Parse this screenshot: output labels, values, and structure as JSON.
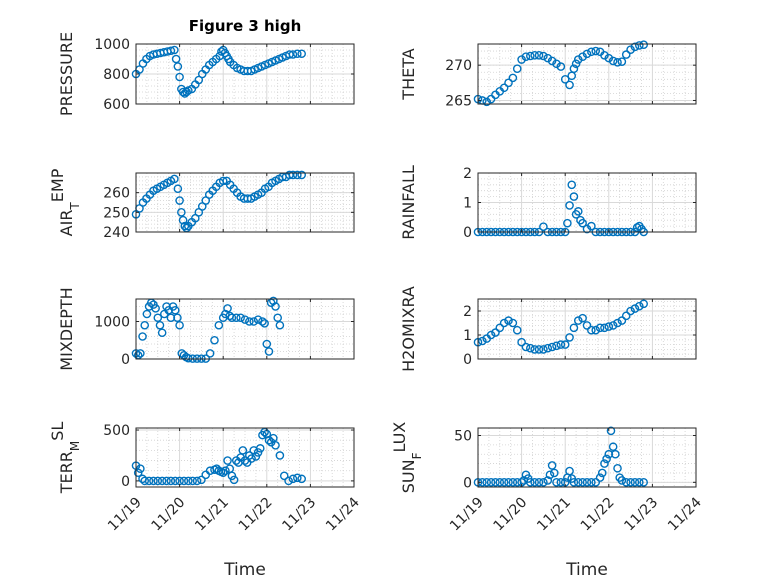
{
  "figure": {
    "title": "Figure 3 high",
    "xlabel": "Time",
    "x_tick_labels": [
      "11/19",
      "11/20",
      "11/21",
      "11/22",
      "11/23",
      "11/24"
    ],
    "marker_color": "#0072BD",
    "grid": true
  },
  "chart_data": [
    {
      "type": "scatter",
      "name": "pressure",
      "ylabel": "PRESSURE",
      "ylabel_sub": "",
      "xlim": [
        "11/19",
        "11/24"
      ],
      "ylim": [
        600,
        1000
      ],
      "yticks": [
        600,
        800,
        1000
      ],
      "x_days": [
        0.0,
        0.08,
        0.16,
        0.24,
        0.32,
        0.4,
        0.48,
        0.56,
        0.64,
        0.72,
        0.8,
        0.88,
        0.92,
        0.96,
        1.0,
        1.04,
        1.08,
        1.12,
        1.16,
        1.2,
        1.28,
        1.36,
        1.44,
        1.52,
        1.6,
        1.68,
        1.76,
        1.84,
        1.92,
        1.96,
        2.0,
        2.04,
        2.08,
        2.12,
        2.16,
        2.24,
        2.32,
        2.4,
        2.48,
        2.56,
        2.64,
        2.72,
        2.8,
        2.88,
        2.96,
        3.04,
        3.12,
        3.2,
        3.28,
        3.36,
        3.44,
        3.52,
        3.6,
        3.7,
        3.8
      ],
      "values": [
        800,
        830,
        870,
        900,
        920,
        930,
        935,
        940,
        945,
        950,
        955,
        960,
        900,
        850,
        780,
        700,
        680,
        670,
        680,
        690,
        700,
        730,
        760,
        800,
        830,
        860,
        880,
        900,
        920,
        950,
        960,
        940,
        920,
        900,
        880,
        860,
        840,
        830,
        820,
        820,
        820,
        830,
        840,
        850,
        860,
        870,
        880,
        890,
        900,
        910,
        920,
        930,
        930,
        935,
        935
      ]
    },
    {
      "type": "scatter",
      "name": "theta",
      "ylabel": "THETA",
      "ylabel_sub": "",
      "xlim": [
        "11/19",
        "11/24"
      ],
      "ylim": [
        264.5,
        273
      ],
      "yticks": [
        265,
        270
      ],
      "x_days": [
        0.0,
        0.1,
        0.2,
        0.3,
        0.4,
        0.5,
        0.6,
        0.7,
        0.8,
        0.9,
        1.0,
        1.1,
        1.2,
        1.3,
        1.4,
        1.5,
        1.6,
        1.7,
        1.8,
        1.9,
        2.0,
        2.1,
        2.15,
        2.2,
        2.25,
        2.3,
        2.4,
        2.5,
        2.6,
        2.7,
        2.8,
        2.9,
        3.0,
        3.1,
        3.2,
        3.3,
        3.4,
        3.5,
        3.6,
        3.7,
        3.8
      ],
      "values": [
        265.2,
        265.0,
        264.8,
        265.2,
        265.8,
        266.3,
        266.8,
        267.5,
        268.2,
        269.5,
        270.8,
        271.2,
        271.3,
        271.4,
        271.4,
        271.3,
        271.0,
        270.6,
        270.2,
        269.8,
        268.0,
        267.2,
        268.5,
        269.5,
        270.2,
        270.8,
        271.2,
        271.6,
        271.9,
        272.0,
        271.9,
        271.4,
        271.0,
        270.6,
        270.4,
        270.5,
        271.5,
        272.2,
        272.6,
        272.8,
        272.9
      ]
    },
    {
      "type": "scatter",
      "name": "air-temp",
      "ylabel": "AIR",
      "ylabel_sub": "T",
      "ylabel_tail": "EMP",
      "xlim": [
        "11/19",
        "11/24"
      ],
      "ylim": [
        240,
        270
      ],
      "yticks": [
        240,
        250,
        260
      ],
      "x_days": [
        0.0,
        0.08,
        0.16,
        0.24,
        0.32,
        0.4,
        0.48,
        0.56,
        0.64,
        0.72,
        0.8,
        0.88,
        0.96,
        1.0,
        1.04,
        1.08,
        1.12,
        1.16,
        1.2,
        1.28,
        1.36,
        1.44,
        1.52,
        1.6,
        1.68,
        1.76,
        1.84,
        1.92,
        2.0,
        2.08,
        2.16,
        2.24,
        2.32,
        2.4,
        2.48,
        2.56,
        2.64,
        2.72,
        2.8,
        2.88,
        2.96,
        3.04,
        3.12,
        3.2,
        3.28,
        3.36,
        3.44,
        3.52,
        3.6,
        3.7,
        3.8
      ],
      "values": [
        249,
        252,
        255,
        257,
        259,
        261,
        262,
        263,
        264,
        265,
        266,
        267,
        262,
        256,
        250,
        246,
        243,
        242,
        243,
        245,
        247,
        250,
        253,
        256,
        259,
        261,
        263,
        265,
        266,
        266,
        264,
        262,
        260,
        258,
        257,
        257,
        257,
        258,
        259,
        260,
        262,
        263,
        265,
        266,
        267,
        268,
        268,
        269,
        269,
        269,
        269
      ]
    },
    {
      "type": "scatter",
      "name": "rainfall",
      "ylabel": "RAINFALL",
      "ylabel_sub": "",
      "xlim": [
        "11/19",
        "11/24"
      ],
      "ylim": [
        0,
        2
      ],
      "yticks": [
        0,
        1,
        2
      ],
      "x_days": [
        0.0,
        0.1,
        0.2,
        0.3,
        0.4,
        0.5,
        0.6,
        0.7,
        0.8,
        0.9,
        1.0,
        1.1,
        1.2,
        1.3,
        1.4,
        1.5,
        1.6,
        1.7,
        1.8,
        1.9,
        2.0,
        2.05,
        2.1,
        2.15,
        2.2,
        2.25,
        2.3,
        2.35,
        2.4,
        2.5,
        2.6,
        2.7,
        2.8,
        2.9,
        3.0,
        3.1,
        3.2,
        3.3,
        3.4,
        3.5,
        3.6,
        3.65,
        3.7,
        3.75,
        3.8
      ],
      "values": [
        0,
        0,
        0,
        0,
        0,
        0,
        0,
        0,
        0,
        0,
        0,
        0,
        0,
        0,
        0,
        0.18,
        0,
        0,
        0,
        0,
        0,
        0.3,
        0.9,
        1.6,
        1.2,
        0.6,
        0.7,
        0.4,
        0.3,
        0.1,
        0.2,
        0,
        0,
        0,
        0,
        0,
        0,
        0,
        0,
        0,
        0,
        0.15,
        0.2,
        0.1,
        0
      ]
    },
    {
      "type": "scatter",
      "name": "mixdepth",
      "ylabel": "MIXDEPTH",
      "ylabel_sub": "",
      "xlim": [
        "11/19",
        "11/24"
      ],
      "ylim": [
        0,
        1600
      ],
      "yticks": [
        0,
        1000
      ],
      "x_days": [
        0.0,
        0.05,
        0.1,
        0.15,
        0.2,
        0.25,
        0.3,
        0.35,
        0.4,
        0.45,
        0.5,
        0.55,
        0.6,
        0.65,
        0.7,
        0.75,
        0.8,
        0.85,
        0.9,
        0.95,
        1.0,
        1.05,
        1.1,
        1.15,
        1.2,
        1.3,
        1.4,
        1.5,
        1.6,
        1.7,
        1.8,
        1.9,
        2.0,
        2.05,
        2.1,
        2.15,
        2.2,
        2.3,
        2.4,
        2.5,
        2.6,
        2.7,
        2.8,
        2.9,
        2.95,
        3.0,
        3.05,
        3.1,
        3.15,
        3.2,
        3.25,
        3.3
      ],
      "values": [
        150,
        100,
        150,
        600,
        900,
        1200,
        1400,
        1500,
        1450,
        1350,
        1100,
        900,
        700,
        1200,
        1400,
        1300,
        1100,
        1400,
        1300,
        1100,
        900,
        150,
        100,
        50,
        20,
        10,
        10,
        10,
        10,
        150,
        500,
        900,
        1100,
        1200,
        1350,
        1150,
        1100,
        1100,
        1100,
        1050,
        1000,
        1000,
        1050,
        1000,
        950,
        400,
        200,
        1500,
        1550,
        1400,
        1100,
        900
      ]
    },
    {
      "type": "scatter",
      "name": "h2omixra",
      "ylabel": "H2OMIXRA",
      "ylabel_sub": "",
      "xlim": [
        "11/19",
        "11/24"
      ],
      "ylim": [
        0,
        2.5
      ],
      "yticks": [
        0,
        1,
        2
      ],
      "x_days": [
        0.0,
        0.1,
        0.2,
        0.3,
        0.4,
        0.5,
        0.6,
        0.7,
        0.8,
        0.9,
        1.0,
        1.1,
        1.2,
        1.3,
        1.4,
        1.5,
        1.6,
        1.7,
        1.8,
        1.9,
        2.0,
        2.1,
        2.2,
        2.3,
        2.4,
        2.5,
        2.6,
        2.7,
        2.8,
        2.9,
        3.0,
        3.1,
        3.2,
        3.3,
        3.4,
        3.5,
        3.6,
        3.7,
        3.8
      ],
      "values": [
        0.7,
        0.75,
        0.85,
        1.0,
        1.1,
        1.3,
        1.5,
        1.6,
        1.5,
        1.2,
        0.7,
        0.5,
        0.45,
        0.4,
        0.4,
        0.4,
        0.45,
        0.5,
        0.55,
        0.6,
        0.6,
        0.9,
        1.3,
        1.6,
        1.7,
        1.4,
        1.2,
        1.2,
        1.3,
        1.3,
        1.35,
        1.4,
        1.5,
        1.6,
        1.8,
        2.0,
        2.1,
        2.2,
        2.3
      ]
    },
    {
      "type": "scatter",
      "name": "terr-msl",
      "ylabel": "TERR",
      "ylabel_sub": "M",
      "ylabel_tail": "SL",
      "xlim": [
        "11/19",
        "11/24"
      ],
      "ylim": [
        -60,
        520
      ],
      "yticks": [
        0,
        500
      ],
      "x_days": [
        0.0,
        0.05,
        0.1,
        0.15,
        0.2,
        0.3,
        0.4,
        0.5,
        0.6,
        0.7,
        0.8,
        0.9,
        1.0,
        1.1,
        1.2,
        1.3,
        1.4,
        1.5,
        1.6,
        1.7,
        1.8,
        1.85,
        1.9,
        1.95,
        2.0,
        2.05,
        2.1,
        2.15,
        2.2,
        2.25,
        2.3,
        2.35,
        2.4,
        2.45,
        2.5,
        2.55,
        2.6,
        2.65,
        2.7,
        2.75,
        2.8,
        2.85,
        2.9,
        2.95,
        3.0,
        3.05,
        3.1,
        3.15,
        3.2,
        3.3,
        3.4,
        3.5,
        3.6,
        3.7,
        3.8
      ],
      "values": [
        150,
        80,
        120,
        20,
        0,
        0,
        0,
        0,
        0,
        0,
        0,
        0,
        0,
        0,
        0,
        0,
        0,
        10,
        60,
        100,
        110,
        120,
        100,
        90,
        80,
        100,
        200,
        120,
        50,
        10,
        200,
        180,
        230,
        300,
        200,
        180,
        250,
        220,
        300,
        240,
        280,
        320,
        450,
        480,
        460,
        400,
        380,
        420,
        350,
        250,
        50,
        0,
        20,
        30,
        20
      ]
    },
    {
      "type": "scatter",
      "name": "sun-flux",
      "ylabel": "SUN",
      "ylabel_sub": "F",
      "ylabel_tail": "LUX",
      "xlim": [
        "11/19",
        "11/24"
      ],
      "ylim": [
        -5,
        58
      ],
      "yticks": [
        0,
        50
      ],
      "x_days": [
        0.0,
        0.1,
        0.2,
        0.3,
        0.4,
        0.5,
        0.6,
        0.7,
        0.8,
        0.9,
        1.0,
        1.05,
        1.1,
        1.15,
        1.2,
        1.3,
        1.4,
        1.5,
        1.6,
        1.65,
        1.7,
        1.75,
        1.8,
        1.9,
        2.0,
        2.05,
        2.1,
        2.15,
        2.2,
        2.3,
        2.4,
        2.5,
        2.6,
        2.7,
        2.8,
        2.85,
        2.9,
        2.95,
        3.0,
        3.05,
        3.1,
        3.15,
        3.2,
        3.25,
        3.3,
        3.4,
        3.5,
        3.6,
        3.7,
        3.8
      ],
      "values": [
        0,
        0,
        0,
        0,
        0,
        0,
        0,
        0,
        0,
        0,
        0,
        2,
        8,
        4,
        0,
        0,
        0,
        0,
        2,
        8,
        18,
        10,
        0,
        0,
        0,
        5,
        12,
        4,
        0,
        0,
        0,
        0,
        0,
        0,
        5,
        10,
        20,
        25,
        30,
        55,
        38,
        30,
        15,
        5,
        2,
        0,
        0,
        0,
        0,
        0
      ]
    }
  ]
}
